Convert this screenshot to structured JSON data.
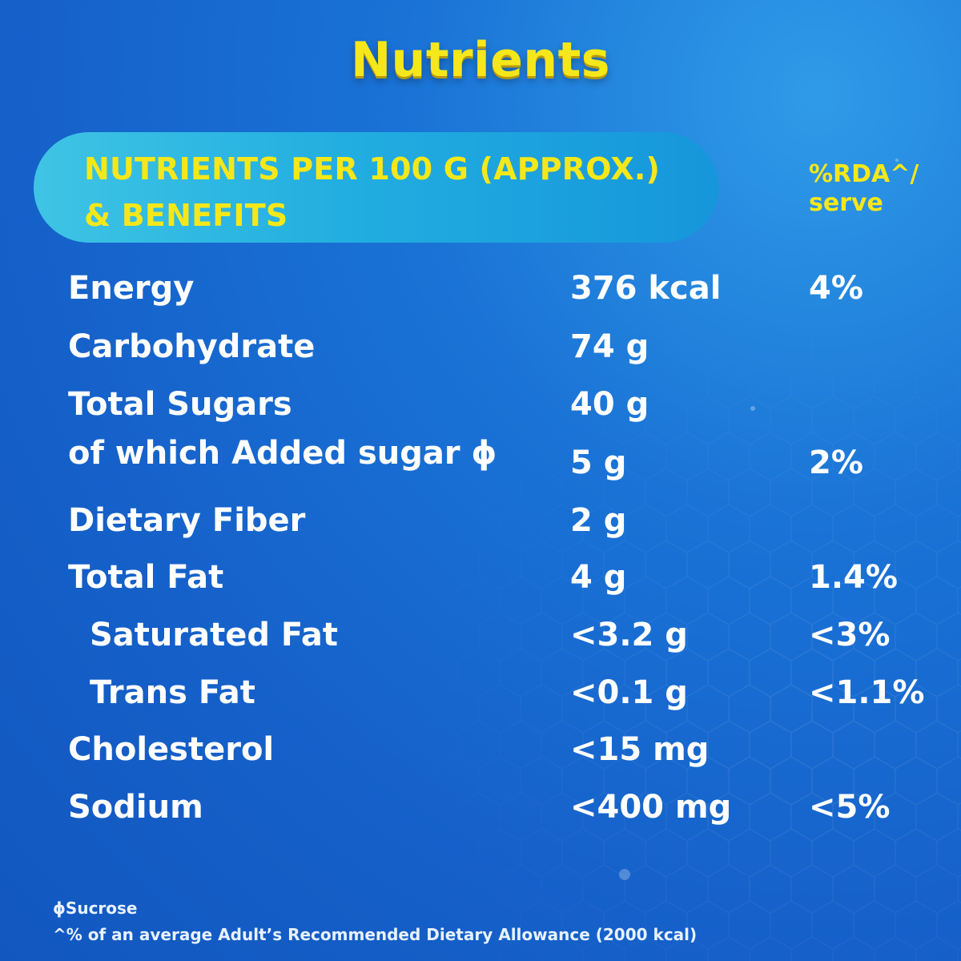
{
  "title": "Nutrients",
  "header": {
    "line1": "NUTRIENTS PER 100 G (APPROX.)",
    "line2": "& BENEFITS",
    "rda_line1": "%RDA^/",
    "rda_line2": "serve"
  },
  "rows": [
    {
      "name": "Energy",
      "value": "376 kcal",
      "rda": "4%"
    },
    {
      "name": "Carbohydrate",
      "value": "74 g",
      "rda": ""
    },
    {
      "name": "Total Sugars",
      "value": "40 g",
      "rda": ""
    },
    {
      "name": "of which Added sugar ϕ",
      "value": "5 g",
      "rda": "2%"
    },
    {
      "name": "Dietary Fiber",
      "value": "2 g",
      "rda": ""
    },
    {
      "name": "Total Fat",
      "value": "4 g",
      "rda": "1.4%"
    },
    {
      "name": "Saturated Fat",
      "value": "<3.2 g",
      "rda": "<3%"
    },
    {
      "name": "Trans Fat",
      "value": "<0.1 g",
      "rda": "<1.1%"
    },
    {
      "name": "Cholesterol",
      "value": "<15 mg",
      "rda": ""
    },
    {
      "name": "Sodium",
      "value": "<400 mg",
      "rda": "<5%"
    }
  ],
  "footnotes": {
    "sucrose": "ϕSucrose",
    "rda_note": "^% of an average Adult’s Recommended Dietary Allowance (2000 kcal)"
  }
}
